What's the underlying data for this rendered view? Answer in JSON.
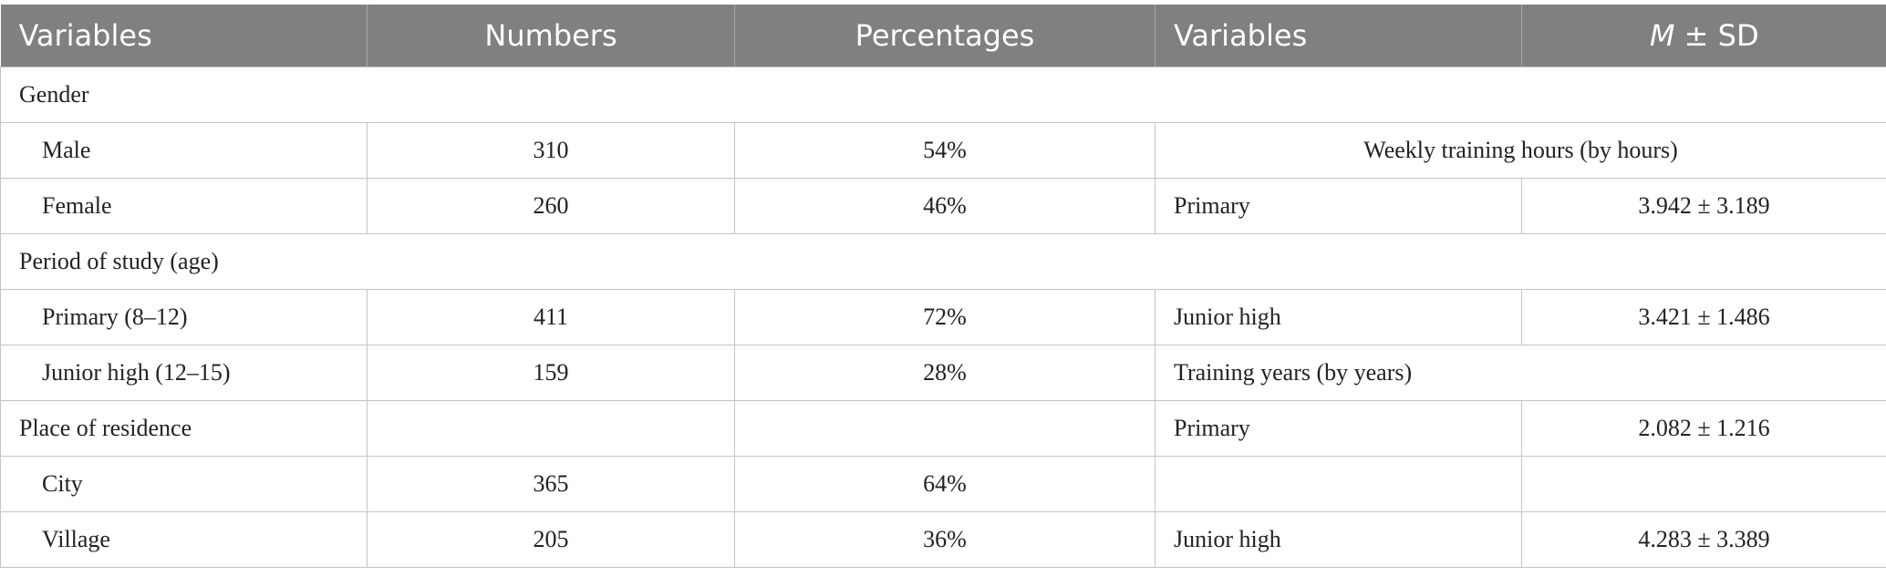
{
  "table": {
    "header": [
      "Variables",
      "Numbers",
      "Percentages",
      "Variables",
      {
        "italic": "M",
        "rest": "± SD"
      }
    ],
    "rows": [
      [
        "Gender"
      ],
      [
        "Male",
        310,
        "54%",
        "Weekly training hours (by hours)"
      ],
      [
        "Female",
        260,
        "46%",
        "Primary",
        "3.942 ± 3.189"
      ],
      [
        "Period of study (age)"
      ],
      [
        "Primary (8–12)",
        411,
        "72%",
        "Junior high",
        "3.421 ± 1.486"
      ],
      [
        "Junior high (12–15)",
        159,
        "28%",
        "Training years (by years)"
      ],
      [
        "Place of residence",
        null,
        null,
        "Primary",
        "2.082 ± 1.216"
      ],
      [
        "City",
        365,
        "64%",
        null,
        null
      ],
      [
        "Village",
        205,
        "36%",
        "Junior high",
        "4.283 ± 3.389"
      ]
    ]
  }
}
